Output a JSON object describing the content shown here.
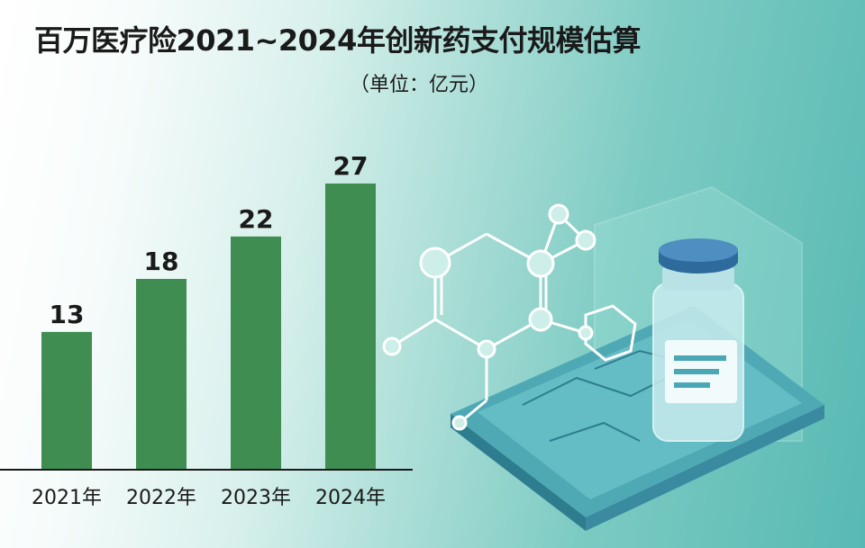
{
  "title": "百万医疗险2021~2024年创新药支付规模估算",
  "unit": "（单位：亿元）",
  "colors": {
    "bar": "#3f8d51",
    "axis": "#1a1a1a"
  },
  "illustration": "vial-and-molecule-illustration",
  "chart_data": {
    "type": "bar",
    "categories": [
      "2021年",
      "2022年",
      "2023年",
      "2024年"
    ],
    "values": [
      13,
      18,
      22,
      27
    ],
    "ylim": [
      0,
      30
    ],
    "grid": false,
    "legend": "none"
  }
}
